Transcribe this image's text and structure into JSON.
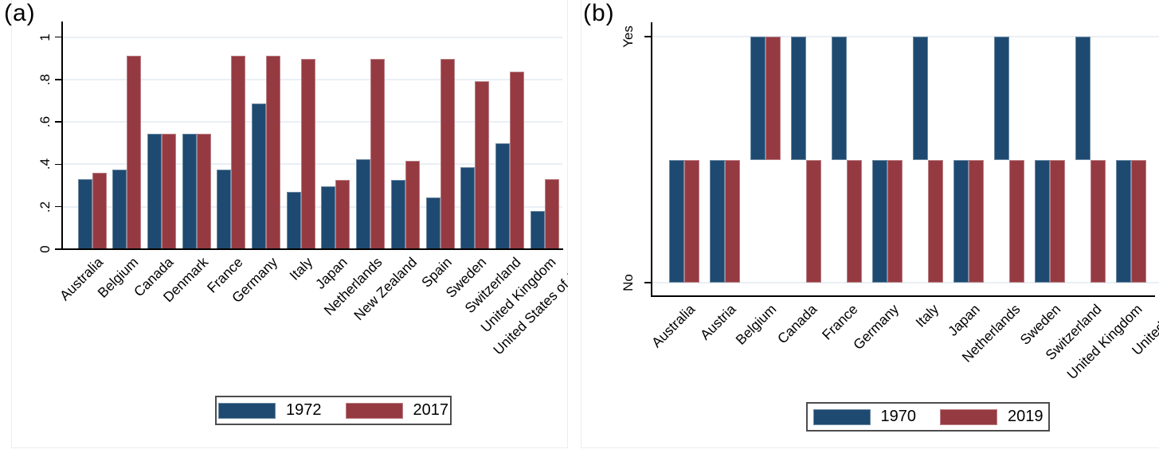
{
  "figure": {
    "background_color": "#ffffff",
    "gridline_color": "#e9eff5",
    "axis_color": "#000000"
  },
  "chart_data": [
    {
      "panel_label": "(a)",
      "type": "bar",
      "orientation": "vertical",
      "categories": [
        "Australia",
        "Belgium",
        "Canada",
        "Denmark",
        "France",
        "Germany",
        "Italy",
        "Japan",
        "Netherlands",
        "New Zealand",
        "Spain",
        "Sweden",
        "Switzerland",
        "United Kingdom",
        "United States of Ame"
      ],
      "series": [
        {
          "name": "1972",
          "color": "#1e4a71",
          "values": [
            0.33,
            0.375,
            0.545,
            0.545,
            0.375,
            0.685,
            0.27,
            0.295,
            0.425,
            0.325,
            0.245,
            0.385,
            0.5,
            0.18,
            null
          ]
        },
        {
          "name": "2017",
          "color": "#963a42",
          "values": [
            0.36,
            0.91,
            0.545,
            0.545,
            0.91,
            0.91,
            0.895,
            0.325,
            0.895,
            0.415,
            0.895,
            0.79,
            0.835,
            0.33,
            null
          ]
        }
      ],
      "ylim": [
        0,
        1
      ],
      "yticks": [
        {
          "value": 0,
          "label": "0"
        },
        {
          "value": 0.2,
          "label": ".2"
        },
        {
          "value": 0.4,
          "label": ".4"
        },
        {
          "value": 0.6,
          "label": ".6"
        },
        {
          "value": 0.8,
          "label": ".8"
        },
        {
          "value": 1,
          "label": "1"
        }
      ],
      "grid": true,
      "xlabel": "",
      "ylabel": "",
      "legend_position": "bottom",
      "note": "last category bars clipped at right edge"
    },
    {
      "panel_label": "(b)",
      "type": "bar",
      "orientation": "vertical",
      "value_type": "binary",
      "bar_baseline": 0.5,
      "categories": [
        "Australia",
        "Austria",
        "Belgium",
        "Canada",
        "France",
        "Germany",
        "Italy",
        "Japan",
        "Netherlands",
        "Sweden",
        "Switzerland",
        "United Kingdom",
        "United Sta"
      ],
      "series": [
        {
          "name": "1970",
          "color": "#1e4a71",
          "values": [
            "No",
            "No",
            "Yes",
            "Yes",
            "Yes",
            "No",
            "Yes",
            "No",
            "Yes",
            "No",
            "Yes",
            "No",
            null
          ]
        },
        {
          "name": "2019",
          "color": "#963a42",
          "values": [
            "No",
            "No",
            "Yes",
            "No",
            "No",
            "No",
            "No",
            "No",
            "No",
            "No",
            "No",
            "No",
            null
          ]
        }
      ],
      "yticks": [
        {
          "value": 1,
          "label": "Yes"
        },
        {
          "value": 0,
          "label": "No"
        }
      ],
      "grid": true,
      "xlabel": "",
      "ylabel": "",
      "legend_position": "bottom",
      "note": "last category bars clipped at right edge"
    }
  ]
}
